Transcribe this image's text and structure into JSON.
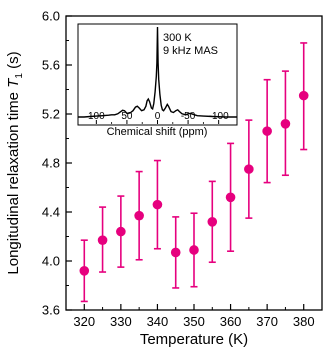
{
  "chart_data": [
    {
      "type": "scatter",
      "xlabel": "Temperature (K)",
      "ylabel_prefix": "Longitudinal relaxation time ",
      "ylabel_symbol": "T",
      "ylabel_subscript": "1",
      "ylabel_unit": " (s)",
      "xlim": [
        315,
        385
      ],
      "ylim": [
        3.6,
        6.0
      ],
      "x_ticks": [
        320,
        330,
        340,
        350,
        360,
        370,
        380
      ],
      "x_ticks_minor": [
        315,
        325,
        335,
        345,
        355,
        365,
        375,
        385
      ],
      "y_ticks": [
        "3.6",
        "4.0",
        "4.4",
        "4.8",
        "5.2",
        "5.6",
        "6.0"
      ],
      "y_ticks_minor": [
        3.8,
        4.2,
        4.6,
        5.0,
        5.4,
        5.8
      ],
      "grid": false,
      "marker_color": "#e6007e",
      "points": [
        {
          "x": 320,
          "y": 3.92,
          "err_low": 3.67,
          "err_high": 4.17
        },
        {
          "x": 325,
          "y": 4.17,
          "err_low": 3.91,
          "err_high": 4.44
        },
        {
          "x": 330,
          "y": 4.24,
          "err_low": 3.95,
          "err_high": 4.53
        },
        {
          "x": 335,
          "y": 4.37,
          "err_low": 4.01,
          "err_high": 4.73
        },
        {
          "x": 340,
          "y": 4.46,
          "err_low": 4.1,
          "err_high": 4.82
        },
        {
          "x": 345,
          "y": 4.07,
          "err_low": 3.78,
          "err_high": 4.36
        },
        {
          "x": 350,
          "y": 4.09,
          "err_low": 3.79,
          "err_high": 4.39
        },
        {
          "x": 355,
          "y": 4.32,
          "err_low": 3.99,
          "err_high": 4.65
        },
        {
          "x": 360,
          "y": 4.52,
          "err_low": 4.08,
          "err_high": 4.96
        },
        {
          "x": 365,
          "y": 4.75,
          "err_low": 4.35,
          "err_high": 5.15
        },
        {
          "x": 370,
          "y": 5.06,
          "err_low": 4.64,
          "err_high": 5.48
        },
        {
          "x": 375,
          "y": 5.12,
          "err_low": 4.7,
          "err_high": 5.55
        },
        {
          "x": 380,
          "y": 5.35,
          "err_low": 4.91,
          "err_high": 5.78
        }
      ]
    },
    {
      "type": "line",
      "annotation_line1": "300 K",
      "annotation_line2": "9 kHz MAS",
      "xlabel": "Chemical shift (ppm)",
      "xlim": [
        130,
        -130
      ],
      "x_reversed": true,
      "x_ticks": [
        "100",
        "50",
        "0",
        "-50",
        "-100"
      ],
      "x_tick_values": [
        100,
        50,
        0,
        -50,
        -100
      ],
      "line_color": "#000000",
      "spectrum": [
        [
          130,
          0.0
        ],
        [
          120,
          0.0
        ],
        [
          110,
          0.005
        ],
        [
          100,
          0.01
        ],
        [
          90,
          0.015
        ],
        [
          80,
          0.02
        ],
        [
          75,
          0.025
        ],
        [
          70,
          0.025
        ],
        [
          65,
          0.035
        ],
        [
          60,
          0.06
        ],
        [
          57,
          0.075
        ],
        [
          54,
          0.07
        ],
        [
          50,
          0.04
        ],
        [
          45,
          0.045
        ],
        [
          40,
          0.07
        ],
        [
          36,
          0.11
        ],
        [
          33,
          0.12
        ],
        [
          30,
          0.1
        ],
        [
          26,
          0.07
        ],
        [
          22,
          0.08
        ],
        [
          19,
          0.12
        ],
        [
          17,
          0.18
        ],
        [
          15,
          0.2
        ],
        [
          13,
          0.17
        ],
        [
          10,
          0.1
        ],
        [
          8,
          0.09
        ],
        [
          6,
          0.15
        ],
        [
          4,
          0.28
        ],
        [
          2,
          0.45
        ],
        [
          1,
          0.6
        ],
        [
          0,
          1.0
        ],
        [
          -1,
          0.6
        ],
        [
          -2,
          0.42
        ],
        [
          -4,
          0.25
        ],
        [
          -6,
          0.13
        ],
        [
          -8,
          0.08
        ],
        [
          -10,
          0.07
        ],
        [
          -13,
          0.1
        ],
        [
          -16,
          0.14
        ],
        [
          -18,
          0.12
        ],
        [
          -22,
          0.06
        ],
        [
          -26,
          0.05
        ],
        [
          -30,
          0.07
        ],
        [
          -33,
          0.08
        ],
        [
          -36,
          0.06
        ],
        [
          -40,
          0.035
        ],
        [
          -46,
          0.025
        ],
        [
          -50,
          0.035
        ],
        [
          -54,
          0.04
        ],
        [
          -58,
          0.03
        ],
        [
          -65,
          0.015
        ],
        [
          -75,
          0.01
        ],
        [
          -90,
          0.005
        ],
        [
          -110,
          0.0
        ],
        [
          -130,
          0.0
        ]
      ]
    }
  ]
}
